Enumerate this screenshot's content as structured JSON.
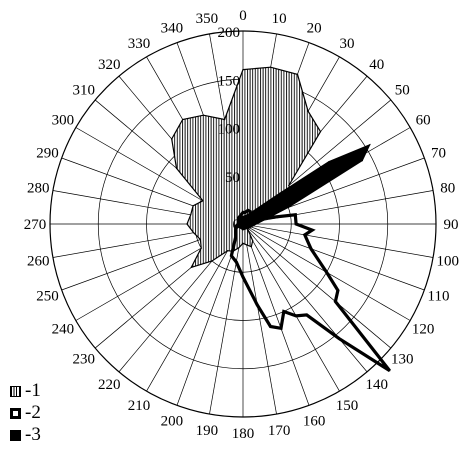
{
  "chart_data": {
    "type": "polar",
    "angle_labels": [
      "0",
      "10",
      "20",
      "30",
      "40",
      "50",
      "60",
      "70",
      "80",
      "90",
      "100",
      "110",
      "120",
      "130",
      "140",
      "150",
      "160",
      "170",
      "180",
      "190",
      "200",
      "210",
      "220",
      "230",
      "240",
      "250",
      "260",
      "270",
      "280",
      "290",
      "300",
      "310",
      "320",
      "330",
      "340",
      "350"
    ],
    "radial_ticks": [
      50,
      100,
      150,
      200
    ],
    "rmax": 200,
    "grid": true,
    "legend": {
      "position": "bottom-left",
      "entries": [
        "-1",
        "-2",
        "-3"
      ]
    },
    "series": [
      {
        "key": "1",
        "style": "hatched-fill",
        "angles": [
          0,
          10,
          20,
          30,
          40,
          50,
          60,
          70,
          80,
          90,
          100,
          110,
          120,
          130,
          140,
          150,
          160,
          170,
          180,
          190,
          200,
          210,
          220,
          230,
          240,
          250,
          260,
          270,
          280,
          290,
          300,
          310,
          320,
          330,
          340,
          350
        ],
        "values": [
          160,
          165,
          165,
          135,
          125,
          62,
          60,
          45,
          15,
          12,
          8,
          6,
          6,
          6,
          8,
          20,
          25,
          22,
          20,
          25,
          30,
          32,
          50,
          70,
          50,
          47,
          52,
          58,
          55,
          55,
          48,
          90,
          115,
          125,
          120,
          110
        ]
      },
      {
        "key": "2",
        "style": "thick-outline",
        "angles": [
          0,
          10,
          20,
          30,
          40,
          50,
          60,
          70,
          80,
          90,
          95,
          100,
          110,
          120,
          125,
          130,
          135,
          140,
          145,
          150,
          155,
          160,
          165,
          170,
          180,
          190,
          200,
          210,
          220,
          250,
          270,
          300,
          330,
          350
        ],
        "values": [
          12,
          12,
          15,
          15,
          12,
          10,
          8,
          15,
          55,
          55,
          72,
          65,
          75,
          100,
          120,
          125,
          215,
          155,
          115,
          110,
          100,
          115,
          110,
          85,
          55,
          40,
          35,
          15,
          12,
          8,
          5,
          5,
          8,
          10
        ]
      },
      {
        "key": "3",
        "style": "solid-fill",
        "angles": [
          0,
          30,
          50,
          54,
          58,
          62,
          70,
          90,
          120,
          180,
          240,
          300,
          330
        ],
        "values": [
          8,
          12,
          50,
          110,
          155,
          140,
          50,
          14,
          8,
          6,
          6,
          6,
          8
        ]
      }
    ]
  }
}
